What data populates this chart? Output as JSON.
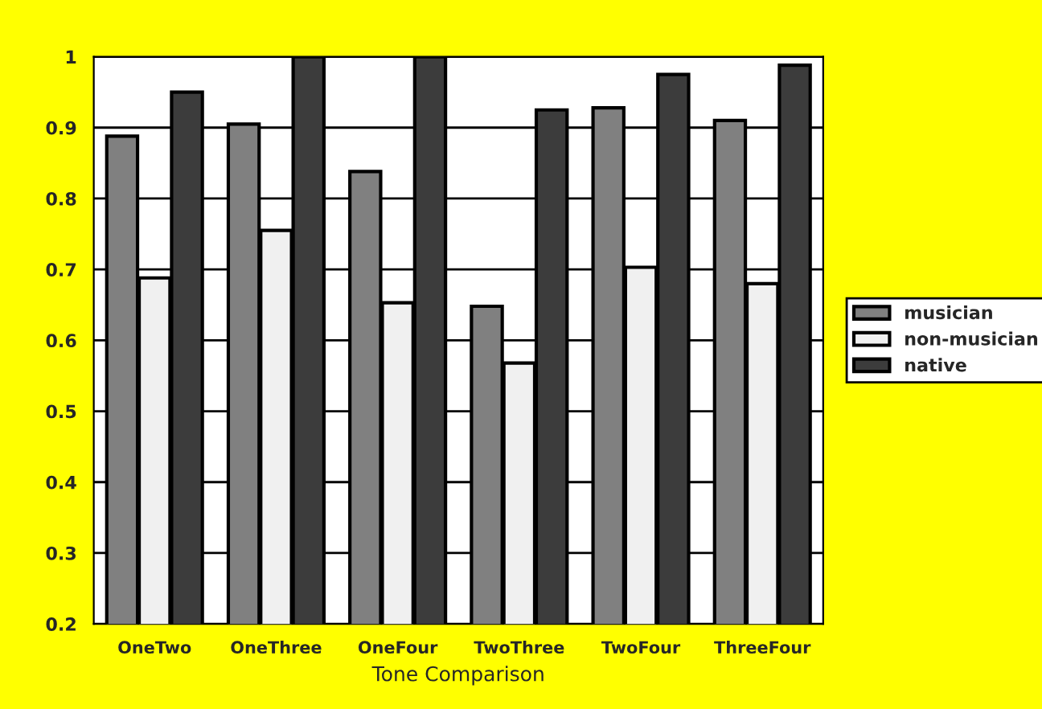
{
  "chart_data": {
    "type": "bar",
    "xlabel": "Tone Comparison",
    "categories": [
      "OneTwo",
      "OneThree",
      "OneFour",
      "TwoThree",
      "TwoFour",
      "ThreeFour"
    ],
    "series": [
      {
        "name": "musician",
        "color": "#808080",
        "values": [
          0.888,
          0.905,
          0.838,
          0.648,
          0.928,
          0.91
        ]
      },
      {
        "name": "non-musician",
        "color": "#f0f0f0",
        "values": [
          0.688,
          0.755,
          0.653,
          0.568,
          0.703,
          0.68
        ]
      },
      {
        "name": "native",
        "color": "#3c3c3c",
        "values": [
          0.95,
          1.0,
          1.0,
          0.925,
          0.975,
          0.988
        ]
      }
    ],
    "ylim": [
      0.2,
      1
    ],
    "yticks": [
      {
        "value": 0.2,
        "label": "0.2"
      },
      {
        "value": 0.3,
        "label": "0.3"
      },
      {
        "value": 0.4,
        "label": "0.4"
      },
      {
        "value": 0.5,
        "label": "0.5"
      },
      {
        "value": 0.6,
        "label": "0.6"
      },
      {
        "value": 0.7,
        "label": "0.7"
      },
      {
        "value": 0.8,
        "label": "0.8"
      },
      {
        "value": 0.9,
        "label": "0.9"
      },
      1
    ],
    "grid": "y",
    "legend": "right"
  }
}
